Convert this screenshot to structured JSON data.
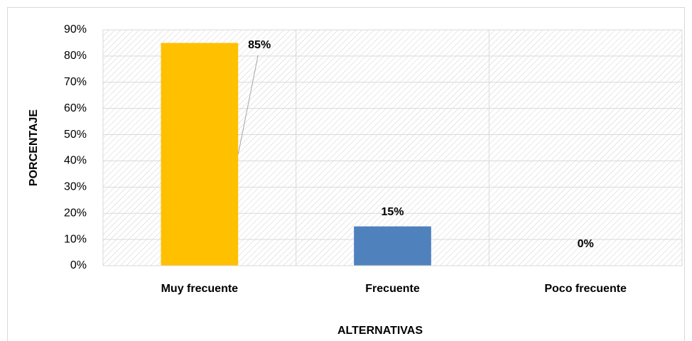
{
  "chart_data": {
    "type": "bar",
    "categories": [
      "Muy frecuente",
      "Frecuente",
      "Poco frecuente"
    ],
    "values": [
      85,
      15,
      0
    ],
    "value_labels": [
      "85%",
      "15%",
      "0%"
    ],
    "colors": [
      "#ffc000",
      "#4f81bd",
      "#a5a5a5"
    ],
    "ylim": [
      0,
      90
    ],
    "yticks": [
      {
        "value": 0,
        "label": "0%"
      },
      {
        "value": 10,
        "label": "10%"
      },
      {
        "value": 20,
        "label": "20%"
      },
      {
        "value": 30,
        "label": "30%"
      },
      {
        "value": 40,
        "label": "40%"
      },
      {
        "value": 50,
        "label": "50%"
      },
      {
        "value": 60,
        "label": "60%"
      },
      {
        "value": 70,
        "label": "70%"
      },
      {
        "value": 80,
        "label": "80%"
      },
      {
        "value": 90,
        "label": "90%"
      }
    ],
    "ylabel": "PORCENTAJE",
    "xlabel": "ALTERNATIVAS",
    "grid": true
  }
}
